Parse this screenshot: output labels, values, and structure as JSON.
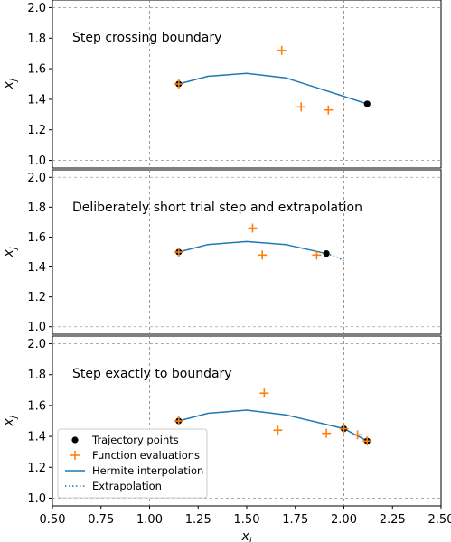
{
  "chart_data": [
    {
      "type": "scatter",
      "title": "Step crossing boundary",
      "xlabel": "",
      "ylabel": "x_j",
      "xlim": [
        0.5,
        2.5
      ],
      "ylim": [
        0.95,
        2.05
      ],
      "yticks": [
        "1.0",
        "1.2",
        "1.4",
        "1.6",
        "1.8",
        "2.0"
      ],
      "grid": false,
      "vlines": [
        1.0,
        2.0
      ],
      "hlines": [
        1.0,
        2.0
      ],
      "series": [
        {
          "name": "Trajectory points",
          "kind": "dot",
          "points": [
            [
              1.15,
              1.5
            ],
            [
              2.12,
              1.37
            ]
          ]
        },
        {
          "name": "Function evaluations",
          "kind": "plus",
          "points": [
            [
              1.15,
              1.5
            ],
            [
              1.68,
              1.72
            ],
            [
              1.78,
              1.35
            ],
            [
              1.92,
              1.33
            ]
          ]
        },
        {
          "name": "Hermite interpolation",
          "kind": "curve",
          "points": [
            [
              1.15,
              1.5
            ],
            [
              1.3,
              1.55
            ],
            [
              1.5,
              1.57
            ],
            [
              1.7,
              1.54
            ],
            [
              1.9,
              1.46
            ],
            [
              2.12,
              1.37
            ]
          ]
        }
      ]
    },
    {
      "type": "scatter",
      "title": "Deliberately short trial step and extrapolation",
      "xlabel": "",
      "ylabel": "x_j",
      "xlim": [
        0.5,
        2.5
      ],
      "ylim": [
        0.95,
        2.05
      ],
      "yticks": [
        "1.0",
        "1.2",
        "1.4",
        "1.6",
        "1.8",
        "2.0"
      ],
      "grid": false,
      "vlines": [
        1.0,
        2.0
      ],
      "hlines": [
        1.0,
        2.0
      ],
      "series": [
        {
          "name": "Trajectory points",
          "kind": "dot",
          "points": [
            [
              1.15,
              1.5
            ],
            [
              1.91,
              1.49
            ]
          ]
        },
        {
          "name": "Function evaluations",
          "kind": "plus",
          "points": [
            [
              1.15,
              1.5
            ],
            [
              1.53,
              1.66
            ],
            [
              1.58,
              1.48
            ],
            [
              1.86,
              1.48
            ]
          ]
        },
        {
          "name": "Hermite interpolation",
          "kind": "curve",
          "points": [
            [
              1.15,
              1.5
            ],
            [
              1.3,
              1.55
            ],
            [
              1.5,
              1.57
            ],
            [
              1.7,
              1.55
            ],
            [
              1.91,
              1.49
            ]
          ]
        },
        {
          "name": "Extrapolation",
          "kind": "dotted",
          "points": [
            [
              1.91,
              1.49
            ],
            [
              1.96,
              1.47
            ],
            [
              2.0,
              1.44
            ]
          ]
        }
      ]
    },
    {
      "type": "scatter",
      "title": "Step exactly to boundary",
      "xlabel": "x_i",
      "ylabel": "x_j",
      "xlim": [
        0.5,
        2.5
      ],
      "ylim": [
        0.95,
        2.05
      ],
      "xticks": [
        "0.50",
        "0.75",
        "1.00",
        "1.25",
        "1.50",
        "1.75",
        "2.00",
        "2.25",
        "2.50"
      ],
      "yticks": [
        "1.0",
        "1.2",
        "1.4",
        "1.6",
        "1.8",
        "2.0"
      ],
      "grid": false,
      "vlines": [
        1.0,
        2.0
      ],
      "hlines": [
        1.0,
        2.0
      ],
      "legend": "lower-left",
      "series": [
        {
          "name": "Trajectory points",
          "kind": "dot",
          "points": [
            [
              1.15,
              1.5
            ],
            [
              2.0,
              1.45
            ],
            [
              2.12,
              1.37
            ]
          ]
        },
        {
          "name": "Function evaluations",
          "kind": "plus",
          "points": [
            [
              1.15,
              1.5
            ],
            [
              1.59,
              1.68
            ],
            [
              1.66,
              1.44
            ],
            [
              1.91,
              1.42
            ],
            [
              2.0,
              1.45
            ],
            [
              2.07,
              1.41
            ],
            [
              2.12,
              1.37
            ]
          ]
        },
        {
          "name": "Hermite interpolation",
          "kind": "curve",
          "points": [
            [
              1.15,
              1.5
            ],
            [
              1.3,
              1.55
            ],
            [
              1.5,
              1.57
            ],
            [
              1.7,
              1.54
            ],
            [
              1.9,
              1.48
            ],
            [
              2.0,
              1.45
            ],
            [
              2.12,
              1.37
            ]
          ]
        }
      ]
    }
  ],
  "legend": {
    "items": [
      {
        "label": "Trajectory points",
        "kind": "dot"
      },
      {
        "label": "Function evaluations",
        "kind": "plus"
      },
      {
        "label": "Hermite interpolation",
        "kind": "curve"
      },
      {
        "label": "Extrapolation",
        "kind": "dotted"
      }
    ]
  },
  "colors": {
    "trajectory": "#000000",
    "evaluation": "#ff7f0e",
    "curve": "#1f77b4",
    "grid": "#808080"
  }
}
